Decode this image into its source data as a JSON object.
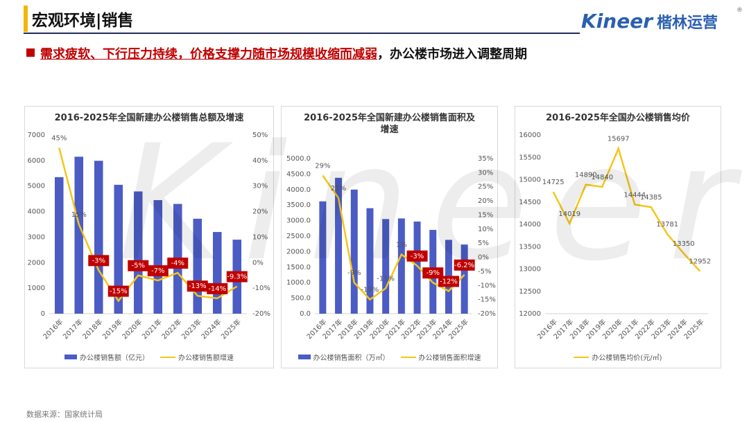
{
  "header": {
    "title": "宏观环境|销售",
    "logo_text": "Kineer",
    "logo_cn": "楷林运营",
    "registered": "®"
  },
  "headline": {
    "highlight": "需求疲软、下行压力持续，价格支撑力随市场规模收缩而减弱",
    "rest": "，办公楼市场进入调整周期"
  },
  "watermark": "Kineer",
  "source": "数据来源：国家统计局",
  "chart_data": [
    {
      "type": "combo",
      "title": "2016-2025年全国新建办公楼销售总额及增速",
      "categories": [
        "2016年",
        "2017年",
        "2018年",
        "2019年",
        "2020年",
        "2021年",
        "2022年",
        "2023年",
        "2024年",
        "2025年"
      ],
      "series": [
        {
          "name": "办公楼销售额（亿元）",
          "type": "bar",
          "color": "#4b5cc4",
          "values": [
            5350,
            6150,
            5990,
            5050,
            4790,
            4450,
            4300,
            3720,
            3200,
            2900
          ]
        },
        {
          "name": "办公楼销售额增速",
          "type": "line",
          "axis": "y2",
          "color": "#f5c518",
          "values": [
            45,
            15,
            -3,
            -15,
            -5,
            -7,
            -4,
            -13,
            -14,
            -9.3
          ],
          "value_labels": [
            "45%",
            "15%",
            "-3%",
            "-15%",
            "-5%",
            "-7%",
            "-4%",
            "-13%",
            "-14%",
            "-9.3%"
          ]
        }
      ],
      "ylim": [
        0,
        7000
      ],
      "yticks": [
        0,
        1000,
        2000,
        3000,
        4000,
        5000,
        6000,
        7000
      ],
      "y2lim": [
        -20,
        50
      ],
      "y2ticks": [
        {
          "value": -20,
          "label": "-20%"
        },
        {
          "value": -10,
          "label": "-10%"
        },
        {
          "value": 0,
          "label": "0%"
        },
        {
          "value": 10,
          "label": "10%"
        },
        {
          "value": 20,
          "label": "20%"
        },
        {
          "value": 30,
          "label": "30%"
        },
        {
          "value": 40,
          "label": "40%"
        },
        {
          "value": 50,
          "label": "50%"
        }
      ]
    },
    {
      "type": "combo",
      "title": "2016-2025年全国新建办公楼销售面积及增速",
      "categories": [
        "2016年",
        "2017年",
        "2018年",
        "2019年",
        "2020年",
        "2021年",
        "2022年",
        "2023年",
        "2024年",
        "2025年"
      ],
      "series": [
        {
          "name": "办公楼销售面积（万㎡）",
          "type": "bar",
          "color": "#4b5cc4",
          "values": [
            3620,
            4380,
            4000,
            3400,
            3050,
            3070,
            2970,
            2700,
            2380,
            2230
          ]
        },
        {
          "name": "办公楼销售面积增速",
          "type": "line",
          "axis": "y2",
          "color": "#f5c518",
          "values": [
            29,
            21,
            -9,
            -15,
            -11,
            1,
            -3,
            -9,
            -12,
            -6.2
          ],
          "value_labels": [
            "29%",
            "21%",
            "-9%",
            "-15%",
            "-11%",
            "1%",
            "-3%",
            "-9%",
            "-12%",
            "-6.2%"
          ]
        }
      ],
      "ylim": [
        0,
        5000
      ],
      "yticks": [
        {
          "value": 0,
          "label": "0.0"
        },
        {
          "value": 500,
          "label": "500.0"
        },
        {
          "value": 1000,
          "label": "1000.0"
        },
        {
          "value": 1500,
          "label": "1500.0"
        },
        {
          "value": 2000,
          "label": "2000.0"
        },
        {
          "value": 2500,
          "label": "2500.0"
        },
        {
          "value": 3000,
          "label": "3000.0"
        },
        {
          "value": 3500,
          "label": "3500.0"
        },
        {
          "value": 4000,
          "label": "4000.0"
        },
        {
          "value": 4500,
          "label": "4500.0"
        },
        {
          "value": 5000,
          "label": "5000.0"
        }
      ],
      "y2lim": [
        -20,
        35
      ],
      "y2ticks": [
        {
          "value": -20,
          "label": "-20%"
        },
        {
          "value": -15,
          "label": "-15%"
        },
        {
          "value": -10,
          "label": "-10%"
        },
        {
          "value": -5,
          "label": "-5%"
        },
        {
          "value": 0,
          "label": "0%"
        },
        {
          "value": 5,
          "label": "5%"
        },
        {
          "value": 10,
          "label": "10%"
        },
        {
          "value": 15,
          "label": "15%"
        },
        {
          "value": 20,
          "label": "20%"
        },
        {
          "value": 25,
          "label": "25%"
        },
        {
          "value": 30,
          "label": "30%"
        },
        {
          "value": 35,
          "label": "35%"
        }
      ]
    },
    {
      "type": "line",
      "title": "2016-2025年全国办公楼销售均价",
      "categories": [
        "2016年",
        "2017年",
        "2018年",
        "2019年",
        "2020年",
        "2021年",
        "2022年",
        "2023年",
        "2024年",
        "2025年"
      ],
      "series": [
        {
          "name": "办公楼销售均价(元/㎡)",
          "type": "line",
          "color": "#f5c518",
          "values": [
            14725,
            14019,
            14890,
            14840,
            15697,
            14444,
            14385,
            13781,
            13350,
            12952
          ]
        }
      ],
      "ylim": [
        12000,
        16000
      ],
      "yticks": [
        12000,
        12500,
        13000,
        13500,
        14000,
        14500,
        15000,
        15500,
        16000
      ]
    }
  ]
}
